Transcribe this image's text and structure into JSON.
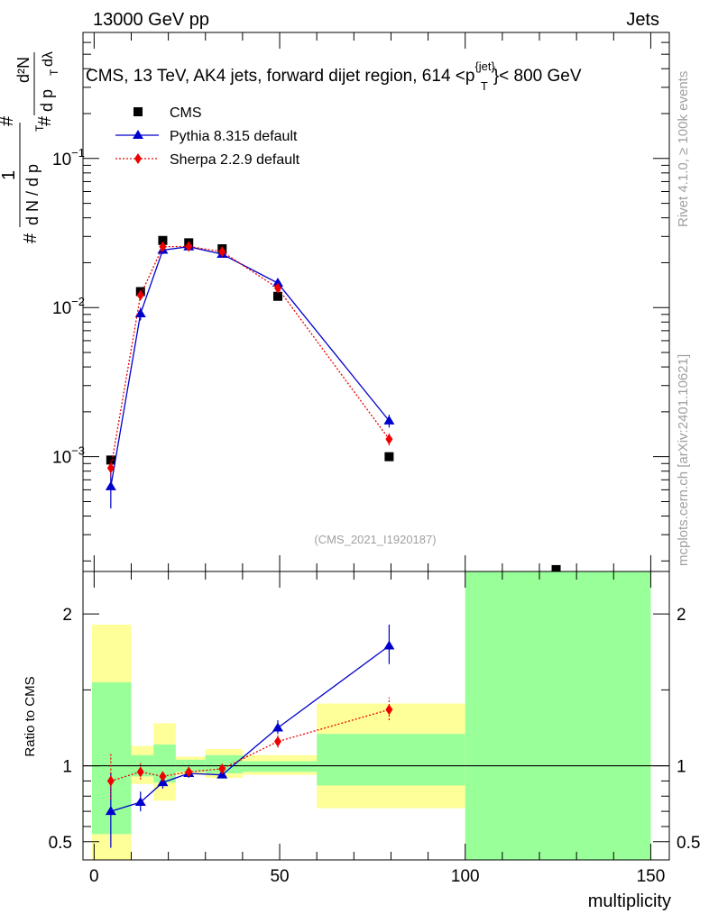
{
  "header": {
    "left": "13000 GeV pp",
    "right": "Jets"
  },
  "side": {
    "rivet": "Rivet 4.1.0, ≥ 100k events",
    "mcplots": "mcplots.cern.ch [arXiv:2401.10621]"
  },
  "chart_data": [
    {
      "type": "line",
      "title": "CMS, 13 TeV, AK4 jets, forward dijet region, 614 <p_T^{jet}> < 800 GeV",
      "title_parts": {
        "main": "CMS, 13 TeV, AK4 jets, forward dijet region, 614 <p",
        "sup": "{jet}",
        "sub": "T",
        "tail": "}< 800 GeV"
      },
      "ylabel": "1/N dN/dp_T d²N/dp_T dλ",
      "ylabel_parts": {
        "hash": "#",
        "one": "1",
        "dN": "d N / d p",
        "T": "T",
        "d2N": "d²N",
        "dpdl": "d p",
        "dl": "dλ"
      },
      "yscale": "log",
      "ylim": [
        0.00017,
        0.7
      ],
      "xlim": [
        -3,
        155
      ],
      "yticks": [
        {
          "value": 0.001,
          "label": "10",
          "exp": "−3"
        },
        {
          "value": 0.01,
          "label": "10",
          "exp": "−2"
        },
        {
          "value": 0.1,
          "label": "10",
          "exp": "−1"
        }
      ],
      "watermark": "(CMS_2021_I1920187)",
      "legend": [
        {
          "name": "CMS",
          "marker": "square",
          "color": "#000000"
        },
        {
          "name": "Pythia 8.315 default",
          "marker": "triangle",
          "color": "#0000cc"
        },
        {
          "name": "Sherpa 2.2.9 default",
          "marker": "diamond",
          "color": "#ee0000"
        }
      ],
      "series": [
        {
          "name": "CMS",
          "x": [
            4.5,
            12.5,
            18.5,
            25.5,
            34.5,
            49.5,
            79.5,
            124.5
          ],
          "y": [
            0.00095,
            0.0128,
            0.0282,
            0.0272,
            0.0248,
            0.0119,
            0.001,
            0.000175
          ]
        },
        {
          "name": "Pythia 8.315 default",
          "x": [
            4.5,
            12.5,
            18.5,
            25.5,
            34.5,
            49.5,
            79.5
          ],
          "y": [
            0.00063,
            0.0091,
            0.0243,
            0.0256,
            0.0228,
            0.0146,
            0.00174
          ],
          "err_lo": [
            0.00045,
            0.0082,
            0.0229,
            0.0244,
            0.0218,
            0.0136,
            0.00157
          ],
          "err_hi": [
            0.00081,
            0.01,
            0.0257,
            0.0268,
            0.0238,
            0.0156,
            0.00191
          ]
        },
        {
          "name": "Sherpa 2.2.9 default",
          "x": [
            4.5,
            12.5,
            18.5,
            25.5,
            34.5,
            49.5,
            79.5
          ],
          "y": [
            0.00084,
            0.0121,
            0.0256,
            0.0257,
            0.0237,
            0.0135,
            0.00131
          ],
          "err_lo": [
            0.00074,
            0.0113,
            0.0246,
            0.0248,
            0.0229,
            0.0128,
            0.00119
          ],
          "err_hi": [
            0.00094,
            0.0129,
            0.0266,
            0.0266,
            0.0245,
            0.0142,
            0.00143
          ]
        }
      ]
    },
    {
      "type": "line",
      "ylabel": "Ratio to CMS",
      "xlabel": "multiplicity",
      "ylim": [
        0.38,
        2.28
      ],
      "xlim": [
        -3,
        155
      ],
      "xticks": [
        {
          "value": 0,
          "label": "0"
        },
        {
          "value": 50,
          "label": "50"
        },
        {
          "value": 100,
          "label": "100"
        },
        {
          "value": 150,
          "label": "150"
        }
      ],
      "yticks": [
        {
          "value": 0.5,
          "label": "0.5"
        },
        {
          "value": 1,
          "label": "1"
        },
        {
          "value": 2,
          "label": "2"
        }
      ],
      "bands": [
        {
          "x0": -1,
          "x1": 10,
          "yellow": [
            0.38,
            1.93
          ],
          "green": [
            0.55,
            1.55
          ]
        },
        {
          "x0": 10,
          "x1": 16,
          "yellow": [
            0.88,
            1.13
          ],
          "green": [
            0.93,
            1.07
          ]
        },
        {
          "x0": 16,
          "x1": 22,
          "yellow": [
            0.77,
            1.28
          ],
          "green": [
            0.89,
            1.14
          ]
        },
        {
          "x0": 22,
          "x1": 30,
          "yellow": [
            0.94,
            1.06
          ],
          "green": [
            0.96,
            1.04
          ]
        },
        {
          "x0": 30,
          "x1": 40,
          "yellow": [
            0.92,
            1.11
          ],
          "green": [
            0.95,
            1.07
          ]
        },
        {
          "x0": 40,
          "x1": 60,
          "yellow": [
            0.94,
            1.07
          ],
          "green": [
            0.96,
            1.03
          ]
        },
        {
          "x0": 60,
          "x1": 100,
          "yellow": [
            0.72,
            1.41
          ],
          "green": [
            0.87,
            1.21
          ]
        },
        {
          "x0": 100,
          "x1": 150,
          "yellow": [
            0.38,
            2.28
          ],
          "green": [
            0.38,
            2.28
          ]
        }
      ],
      "series": [
        {
          "name": "Pythia 8.315 default",
          "x": [
            4.5,
            12.5,
            18.5,
            25.5,
            34.5,
            49.5,
            79.5
          ],
          "y": [
            0.7,
            0.76,
            0.89,
            0.95,
            0.94,
            1.25,
            1.79
          ],
          "err_lo": [
            0.46,
            0.7,
            0.85,
            0.92,
            0.92,
            1.21,
            1.67
          ],
          "err_hi": [
            0.95,
            0.83,
            0.93,
            0.98,
            0.96,
            1.3,
            1.93
          ]
        },
        {
          "name": "Sherpa 2.2.9 default",
          "x": [
            4.5,
            12.5,
            18.5,
            25.5,
            34.5,
            49.5,
            79.5
          ],
          "y": [
            0.9,
            0.96,
            0.93,
            0.96,
            0.98,
            1.16,
            1.37
          ],
          "err_lo": [
            0.78,
            0.91,
            0.9,
            0.93,
            0.95,
            1.12,
            1.3
          ],
          "err_hi": [
            1.08,
            1.02,
            0.97,
            0.99,
            1.01,
            1.2,
            1.45
          ]
        }
      ]
    }
  ]
}
